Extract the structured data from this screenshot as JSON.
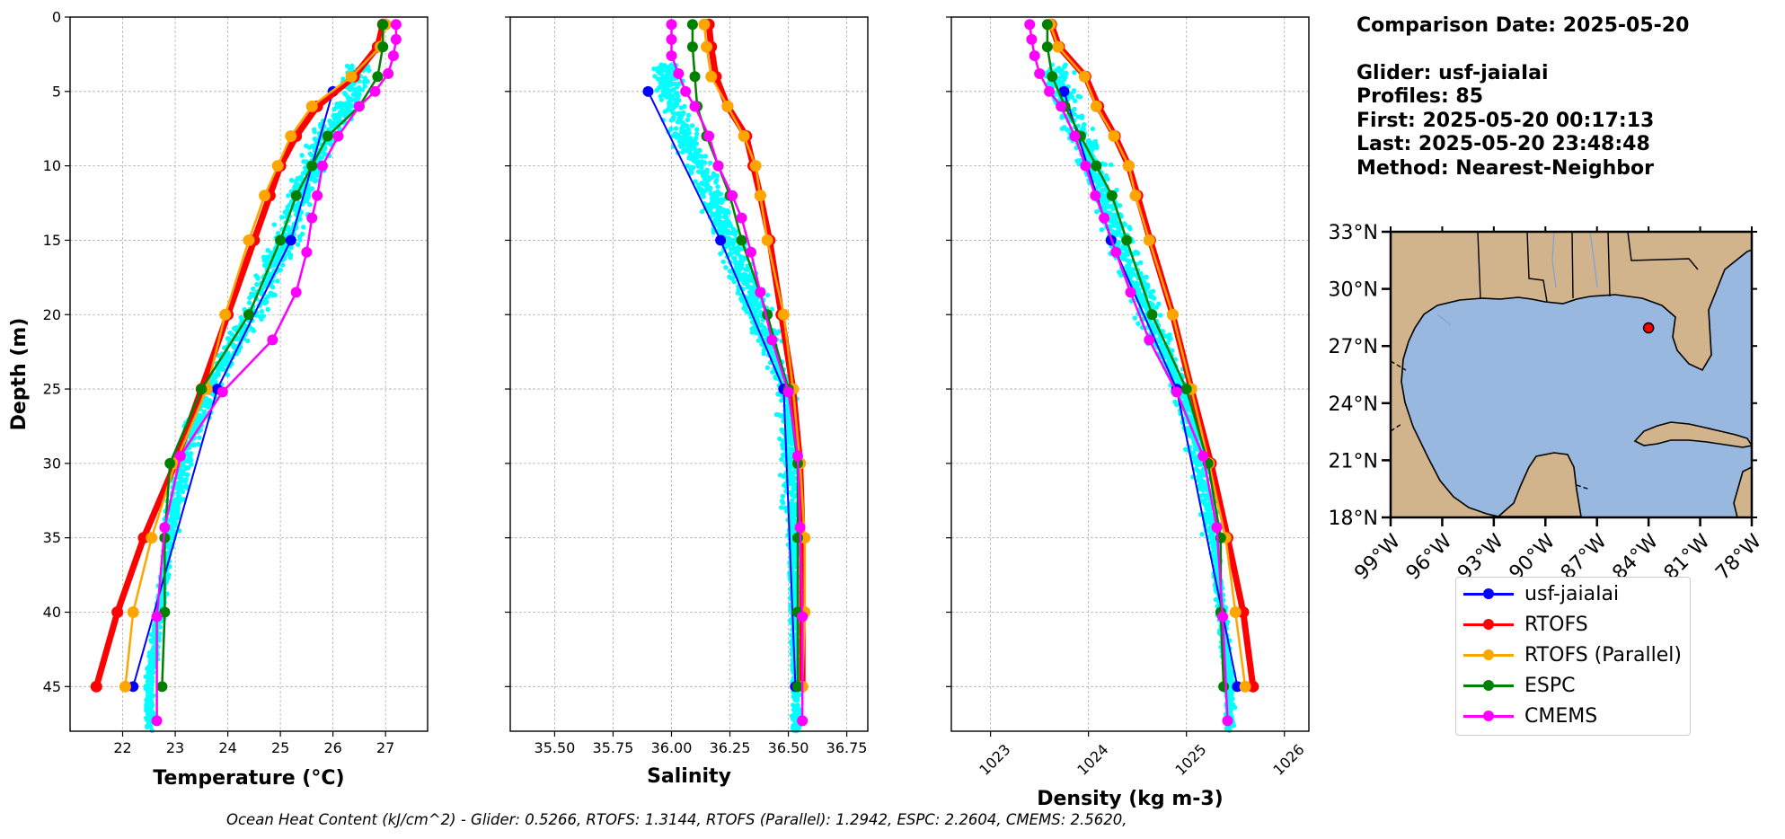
{
  "info": {
    "comparison_date": "Comparison Date: 2025-05-20",
    "glider": "Glider: usf-jaiaIai",
    "profiles": "Profiles: 85",
    "first": "First: 2025-05-20 00:17:13",
    "last": "Last: 2025-05-20 23:48:48",
    "method": "Method: Nearest-Neighbor"
  },
  "footer": "Ocean Heat Content (kJ/cm^2) - Glider: 0.5266,  RTOFS: 1.3144,  RTOFS (Parallel): 1.2942,  ESPC: 2.2604,  CMEMS: 2.5620,",
  "legend": [
    {
      "name": "usf-jaiaIai",
      "color": "#0000ff"
    },
    {
      "name": "RTOFS",
      "color": "#ff0000"
    },
    {
      "name": "RTOFS (Parallel)",
      "color": "#ffa500"
    },
    {
      "name": "ESPC",
      "color": "#008000"
    },
    {
      "name": "CMEMS",
      "color": "#ff00ff"
    }
  ],
  "chart_data": [
    {
      "type": "line",
      "title": "",
      "xlabel": "Temperature (°C)",
      "ylabel": "Depth (m)",
      "xlim": [
        21.0,
        27.8
      ],
      "ylim": [
        48,
        0
      ],
      "xticks": [
        "22",
        "23",
        "24",
        "25",
        "26",
        "27"
      ],
      "yticks": [
        "0",
        "5",
        "10",
        "15",
        "20",
        "25",
        "30",
        "35",
        "40",
        "45"
      ],
      "grid": true,
      "series": [
        {
          "name": "usf-jaiaIai",
          "color": "#0000ff",
          "depth": [
            5,
            15,
            25,
            45
          ],
          "values": [
            26.0,
            25.2,
            23.8,
            22.2
          ]
        },
        {
          "name": "RTOFS",
          "color": "#ff0000",
          "depth": [
            0.5,
            2,
            4,
            6,
            8,
            10,
            12,
            15,
            20,
            25,
            30,
            35,
            40,
            45
          ],
          "values": [
            26.95,
            26.85,
            26.4,
            25.7,
            25.3,
            25.0,
            24.8,
            24.5,
            24.0,
            23.5,
            23.0,
            22.4,
            21.9,
            21.5
          ]
        },
        {
          "name": "RTOFS (Parallel)",
          "color": "#ffa500",
          "depth": [
            0.5,
            2,
            4,
            6,
            8,
            10,
            12,
            15,
            20,
            25,
            30,
            35,
            40,
            45
          ],
          "values": [
            27.0,
            26.9,
            26.35,
            25.6,
            25.2,
            24.95,
            24.7,
            24.4,
            23.95,
            23.6,
            23.0,
            22.55,
            22.2,
            22.05
          ]
        },
        {
          "name": "ESPC",
          "color": "#008000",
          "depth": [
            0.5,
            2,
            4,
            6,
            8,
            10,
            12,
            15,
            20,
            25,
            30,
            35,
            40,
            45
          ],
          "values": [
            26.95,
            26.95,
            26.85,
            26.5,
            25.9,
            25.6,
            25.3,
            25.0,
            24.4,
            23.5,
            22.9,
            22.8,
            22.8,
            22.75
          ]
        },
        {
          "name": "CMEMS",
          "color": "#ff00ff",
          "depth": [
            0.5,
            1.5,
            2.6,
            3.8,
            5,
            6,
            8,
            10,
            12,
            13.5,
            15.8,
            18.5,
            21.7,
            25.2,
            29.5,
            34.3,
            40.3,
            47.3
          ],
          "values": [
            27.2,
            27.2,
            27.15,
            27.05,
            26.8,
            26.5,
            26.1,
            25.8,
            25.7,
            25.6,
            25.5,
            25.3,
            24.85,
            23.9,
            23.1,
            22.8,
            22.65,
            22.65
          ]
        }
      ]
    },
    {
      "type": "line",
      "title": "",
      "xlabel": "Salinity",
      "ylabel": "",
      "xlim": [
        35.31,
        36.84
      ],
      "ylim": [
        48,
        0
      ],
      "xticks": [
        "35.50",
        "35.75",
        "36.00",
        "36.25",
        "36.50",
        "36.75"
      ],
      "grid": true,
      "series": [
        {
          "name": "usf-jaiaIai",
          "color": "#0000ff",
          "depth": [
            5,
            15,
            25,
            45
          ],
          "values": [
            35.9,
            36.21,
            36.48,
            36.53
          ]
        },
        {
          "name": "RTOFS",
          "color": "#ff0000",
          "depth": [
            0.5,
            2,
            4,
            6,
            8,
            10,
            12,
            15,
            20,
            25,
            30,
            35,
            40,
            45
          ],
          "values": [
            36.16,
            36.17,
            36.19,
            36.24,
            36.32,
            36.35,
            36.38,
            36.42,
            36.47,
            36.52,
            36.55,
            36.56,
            36.56,
            36.56
          ]
        },
        {
          "name": "RTOFS (Parallel)",
          "color": "#ffa500",
          "depth": [
            0.5,
            2,
            4,
            6,
            8,
            10,
            12,
            15,
            20,
            25,
            30,
            35,
            40,
            45
          ],
          "values": [
            36.14,
            36.15,
            36.17,
            36.24,
            36.31,
            36.36,
            36.38,
            36.41,
            36.48,
            36.52,
            36.55,
            36.57,
            36.57,
            36.56
          ]
        },
        {
          "name": "ESPC",
          "color": "#008000",
          "depth": [
            0.5,
            2,
            4,
            6,
            8,
            10,
            12,
            15,
            20,
            25,
            30,
            35,
            40,
            45
          ],
          "values": [
            36.09,
            36.09,
            36.1,
            36.11,
            36.15,
            36.2,
            36.25,
            36.3,
            36.41,
            36.5,
            36.54,
            36.54,
            36.54,
            36.54
          ]
        },
        {
          "name": "CMEMS",
          "color": "#ff00ff",
          "depth": [
            0.5,
            1.5,
            2.6,
            3.8,
            5,
            6,
            8,
            10,
            12,
            13.5,
            15.8,
            18.5,
            21.7,
            25.2,
            29.5,
            34.3,
            40.3,
            47.3
          ],
          "values": [
            36.0,
            36.0,
            36.0,
            36.03,
            36.06,
            36.1,
            36.16,
            36.2,
            36.26,
            36.3,
            36.34,
            36.38,
            36.43,
            36.5,
            36.54,
            36.55,
            36.56,
            36.56
          ]
        }
      ]
    },
    {
      "type": "line",
      "title": "",
      "xlabel": "Density (kg m-3)",
      "ylabel": "",
      "xlim": [
        1022.6,
        1026.25
      ],
      "ylim": [
        48,
        0
      ],
      "xticks": [
        "1023",
        "1024",
        "1025",
        "1026"
      ],
      "grid": true,
      "series": [
        {
          "name": "usf-jaiaIai",
          "color": "#0000ff",
          "depth": [
            5,
            15,
            25,
            45
          ],
          "values": [
            1023.75,
            1024.23,
            1024.9,
            1025.52
          ]
        },
        {
          "name": "RTOFS",
          "color": "#ff0000",
          "depth": [
            0.5,
            2,
            4,
            6,
            8,
            10,
            12,
            15,
            20,
            25,
            30,
            35,
            40,
            45
          ],
          "values": [
            1023.62,
            1023.7,
            1023.97,
            1024.1,
            1024.27,
            1024.41,
            1024.5,
            1024.63,
            1024.86,
            1025.05,
            1025.25,
            1025.42,
            1025.58,
            1025.68
          ]
        },
        {
          "name": "RTOFS (Parallel)",
          "color": "#ffa500",
          "depth": [
            0.5,
            2,
            4,
            6,
            8,
            10,
            12,
            15,
            20,
            25,
            30,
            35,
            40,
            45
          ],
          "values": [
            1023.61,
            1023.69,
            1023.96,
            1024.08,
            1024.26,
            1024.41,
            1024.48,
            1024.62,
            1024.86,
            1025.05,
            1025.23,
            1025.4,
            1025.5,
            1025.6
          ]
        },
        {
          "name": "ESPC",
          "color": "#008000",
          "depth": [
            0.5,
            2,
            4,
            6,
            8,
            10,
            12,
            15,
            20,
            25,
            30,
            35,
            40,
            45
          ],
          "values": [
            1023.58,
            1023.58,
            1023.63,
            1023.76,
            1023.92,
            1024.08,
            1024.24,
            1024.39,
            1024.65,
            1025.0,
            1025.22,
            1025.35,
            1025.35,
            1025.38
          ]
        },
        {
          "name": "CMEMS",
          "color": "#ff00ff",
          "depth": [
            0.5,
            1.5,
            2.6,
            3.8,
            5,
            6,
            8,
            10,
            12,
            13.5,
            15.8,
            18.5,
            21.7,
            25.2,
            29.5,
            34.3,
            40.3,
            47.3
          ],
          "values": [
            1023.4,
            1023.42,
            1023.45,
            1023.5,
            1023.6,
            1023.72,
            1023.86,
            1023.97,
            1024.07,
            1024.16,
            1024.28,
            1024.43,
            1024.62,
            1024.9,
            1025.17,
            1025.31,
            1025.37,
            1025.42
          ]
        }
      ]
    },
    {
      "type": "map",
      "xticks": [
        "99°W",
        "96°W",
        "93°W",
        "90°W",
        "87°W",
        "84°W",
        "81°W",
        "78°W"
      ],
      "yticks": [
        "18°N",
        "21°N",
        "24°N",
        "27°N",
        "30°N",
        "33°N"
      ],
      "lon_range": [
        -99,
        -78
      ],
      "lat_range": [
        18,
        33
      ],
      "glider_position": {
        "lon": -84.0,
        "lat": 27.95
      },
      "ocean_color": "#99b8e0",
      "land_color": "#d2b48c"
    }
  ]
}
